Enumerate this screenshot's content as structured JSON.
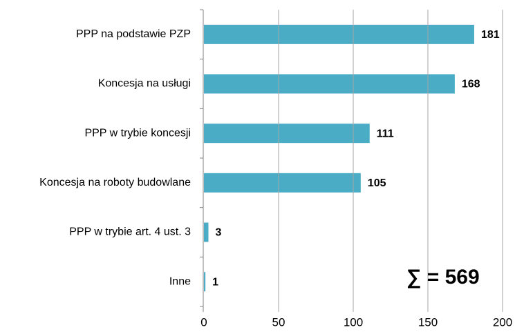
{
  "chart_data": {
    "type": "bar",
    "orientation": "horizontal",
    "categories": [
      "PPP na podstawie PZP",
      "Koncesja na usługi",
      "PPP w trybie koncesji",
      "Koncesja na roboty budowlane",
      "PPP w trybie art. 4 ust. 3",
      "Inne"
    ],
    "values": [
      181,
      168,
      111,
      105,
      3,
      1
    ],
    "color": "#4bacc6",
    "xlim": [
      0,
      200
    ],
    "xticks": [
      0,
      50,
      100,
      150,
      200
    ],
    "grid": true,
    "annotation": "∑ = 569"
  }
}
